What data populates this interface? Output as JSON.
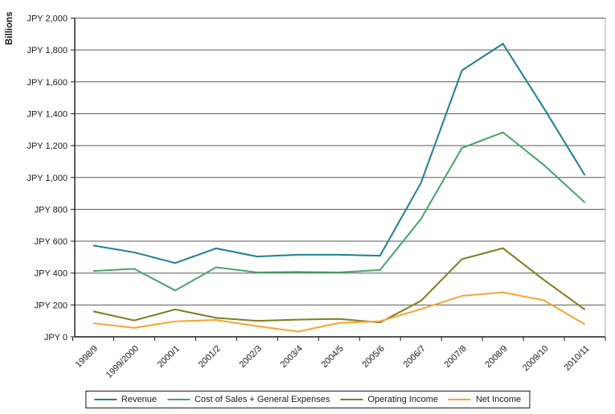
{
  "chart_data": {
    "type": "line",
    "title": "",
    "xlabel": "",
    "ylabel": "Billions",
    "ylim": [
      0,
      2000
    ],
    "y_tick_step": 200,
    "y_tick_labels": [
      "JPY 0",
      "JPY 200",
      "JPY 400",
      "JPY 600",
      "JPY 800",
      "JPY 1,000",
      "JPY 1,200",
      "JPY 1,400",
      "JPY 1,600",
      "JPY 1,800",
      "JPY 2,000"
    ],
    "categories": [
      "1998/9",
      "1999/2000",
      "2000/1",
      "2001/2",
      "2002/3",
      "2003/4",
      "2004/5",
      "2005/6",
      "2006/7",
      "2007/8",
      "2008/9",
      "2009/10",
      "2010/11"
    ],
    "series": [
      {
        "name": "Revenue",
        "color": "#1e7f90",
        "values": [
          573,
          530,
          463,
          555,
          504,
          515,
          515,
          509,
          966,
          1672,
          1839,
          1434,
          1014
        ]
      },
      {
        "name": "Cost of Sales + General Expenses",
        "color": "#44a567",
        "values": [
          413,
          427,
          291,
          436,
          404,
          407,
          404,
          419,
          740,
          1185,
          1283,
          1078,
          843
        ]
      },
      {
        "name": "Operating Income",
        "color": "#7d7d1f",
        "values": [
          160,
          103,
          172,
          119,
          100,
          108,
          112,
          90,
          226,
          487,
          556,
          357,
          171
        ]
      },
      {
        "name": "Net Income",
        "color": "#faa332",
        "values": [
          86,
          56,
          97,
          106,
          67,
          33,
          87,
          98,
          174,
          257,
          279,
          229,
          78
        ]
      }
    ],
    "grid": true,
    "legend_position": "bottom-center"
  },
  "colors": {
    "grid": "#595959",
    "axis": "#1a1a1a",
    "right_border": "#a8a8a8",
    "text": "#1a1a1a"
  }
}
